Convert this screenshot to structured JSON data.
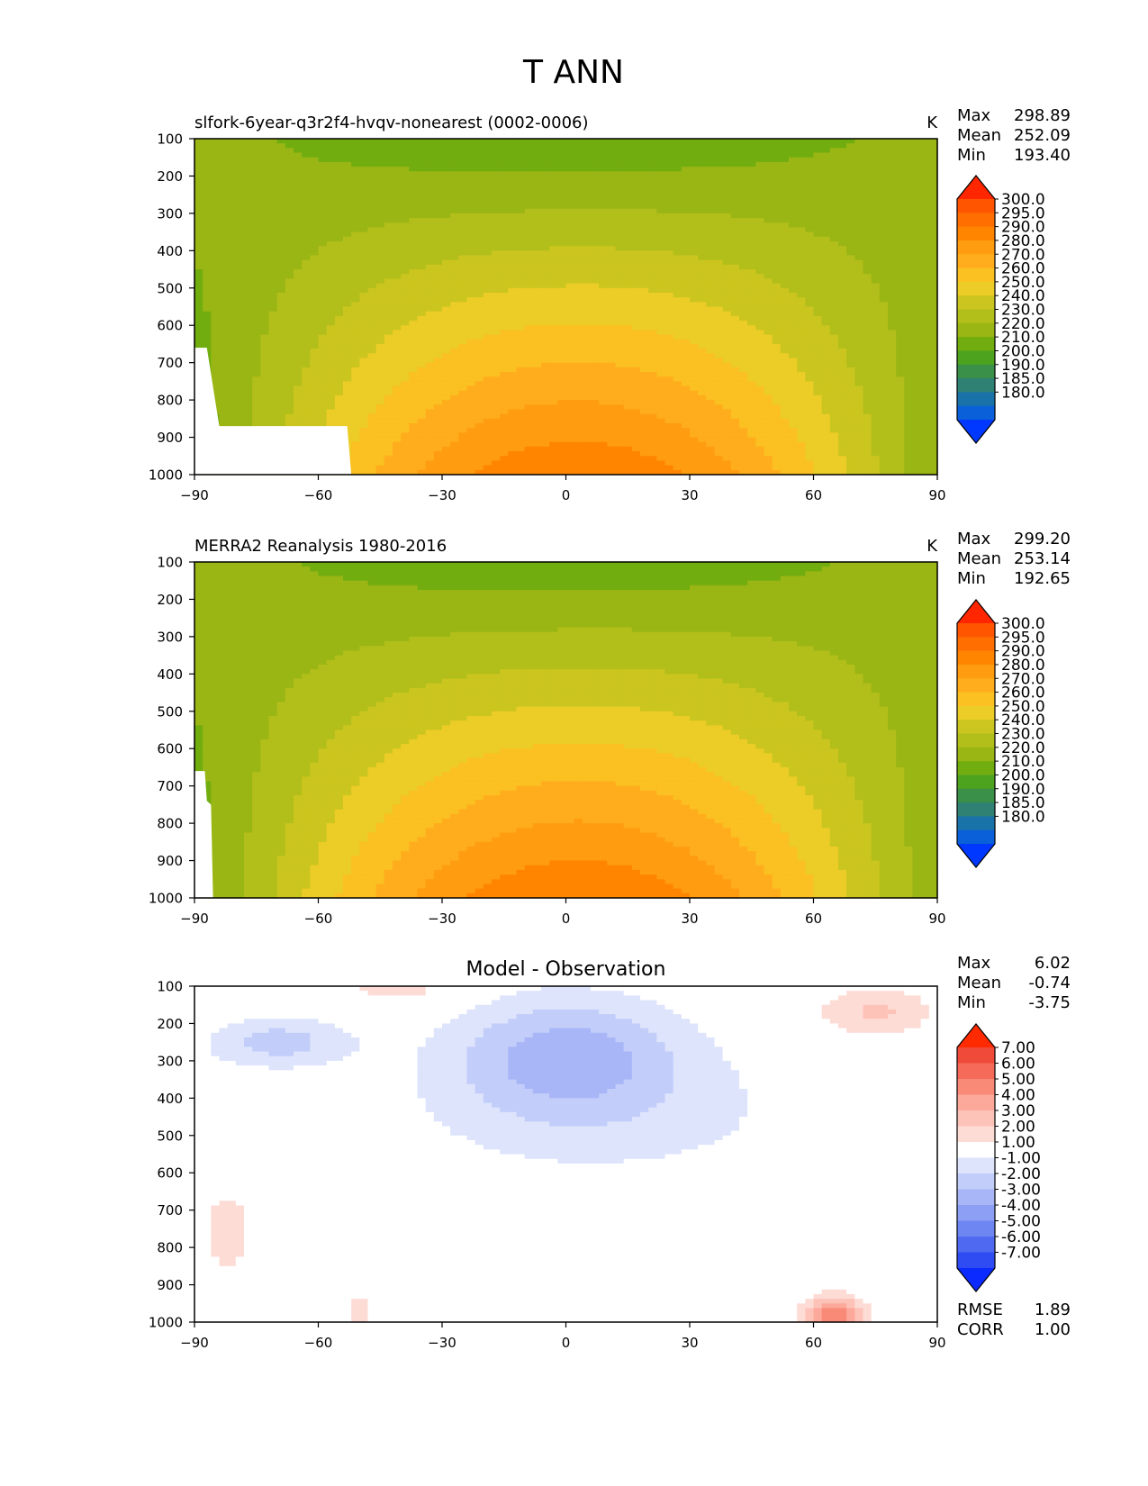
{
  "figure_title": "T ANN",
  "chart_data": [
    {
      "type": "heatmap",
      "title": "slfork-6year-q3r2f4-hvqv-nonearest (0002-0006)",
      "units": "K",
      "xlabel": "",
      "ylabel": "",
      "xlim": [
        -90,
        90
      ],
      "ylim": [
        1000,
        100
      ],
      "x_ticks": [
        "−90",
        "−60",
        "−30",
        "0",
        "30",
        "60",
        "90"
      ],
      "y_ticks": [
        "100",
        "200",
        "300",
        "400",
        "500",
        "600",
        "700",
        "800",
        "900",
        "1000"
      ],
      "stats": [
        {
          "label": "Max",
          "value": "298.89"
        },
        {
          "label": "Mean",
          "value": "252.09"
        },
        {
          "label": "Min",
          "value": "193.40"
        }
      ],
      "colorbar": {
        "labels": [
          "300.0",
          "295.0",
          "290.0",
          "280.0",
          "270.0",
          "260.0",
          "250.0",
          "240.0",
          "230.0",
          "220.0",
          "210.0",
          "200.0",
          "190.0",
          "185.0",
          "180.0"
        ],
        "colors": [
          "#ff2600",
          "#ff5500",
          "#ff6e00",
          "#ff8500",
          "#ff9c10",
          "#ffad1c",
          "#fbc021",
          "#eccc26",
          "#cbc51f",
          "#b2be1a",
          "#9ab614",
          "#72ad10",
          "#4ea31e",
          "#3a9048",
          "#2f8273",
          "#1a73a8",
          "#0a60d8",
          "#0038ff"
        ]
      }
    },
    {
      "type": "heatmap",
      "title": "MERRA2 Reanalysis 1980-2016",
      "units": "K",
      "xlabel": "",
      "ylabel": "",
      "xlim": [
        -90,
        90
      ],
      "ylim": [
        1000,
        100
      ],
      "x_ticks": [
        "−90",
        "−60",
        "−30",
        "0",
        "30",
        "60",
        "90"
      ],
      "y_ticks": [
        "100",
        "200",
        "300",
        "400",
        "500",
        "600",
        "700",
        "800",
        "900",
        "1000"
      ],
      "stats": [
        {
          "label": "Max",
          "value": "299.20"
        },
        {
          "label": "Mean",
          "value": "253.14"
        },
        {
          "label": "Min",
          "value": "192.65"
        }
      ],
      "colorbar": {
        "labels": [
          "300.0",
          "295.0",
          "290.0",
          "280.0",
          "270.0",
          "260.0",
          "250.0",
          "240.0",
          "230.0",
          "220.0",
          "210.0",
          "200.0",
          "190.0",
          "185.0",
          "180.0"
        ],
        "colors": [
          "#ff2600",
          "#ff5500",
          "#ff6e00",
          "#ff8500",
          "#ff9c10",
          "#ffad1c",
          "#fbc021",
          "#eccc26",
          "#cbc51f",
          "#b2be1a",
          "#9ab614",
          "#72ad10",
          "#4ea31e",
          "#3a9048",
          "#2f8273",
          "#1a73a8",
          "#0a60d8",
          "#0038ff"
        ]
      }
    },
    {
      "type": "heatmap",
      "title": "Model - Observation",
      "units": "",
      "xlabel": "",
      "ylabel": "",
      "xlim": [
        -90,
        90
      ],
      "ylim": [
        1000,
        100
      ],
      "x_ticks": [
        "−90",
        "−60",
        "−30",
        "0",
        "30",
        "60",
        "90"
      ],
      "y_ticks": [
        "100",
        "200",
        "300",
        "400",
        "500",
        "600",
        "700",
        "800",
        "900",
        "1000"
      ],
      "stats": [
        {
          "label": "Max",
          "value": "6.02"
        },
        {
          "label": "Mean",
          "value": "-0.74"
        },
        {
          "label": "Min",
          "value": "-3.75"
        }
      ],
      "colorbar": {
        "labels": [
          "7.00",
          "6.00",
          "5.00",
          "4.00",
          "3.00",
          "2.00",
          "1.00",
          "-1.00",
          "-2.00",
          "-3.00",
          "-4.00",
          "-5.00",
          "-6.00",
          "-7.00"
        ],
        "colors": [
          "#ff2a00",
          "#f04a3a",
          "#f56a58",
          "#f98a78",
          "#fca89a",
          "#fdc3b8",
          "#fddcd6",
          "#ffffff",
          "#dde4fb",
          "#c2cdfa",
          "#a8b6f7",
          "#8c9ff4",
          "#6e86f2",
          "#4f6af0",
          "#2f4cf2",
          "#0a2aff"
        ]
      },
      "footer_stats": [
        {
          "label": "RMSE",
          "value": "1.89"
        },
        {
          "label": "CORR",
          "value": "1.00"
        }
      ]
    }
  ]
}
